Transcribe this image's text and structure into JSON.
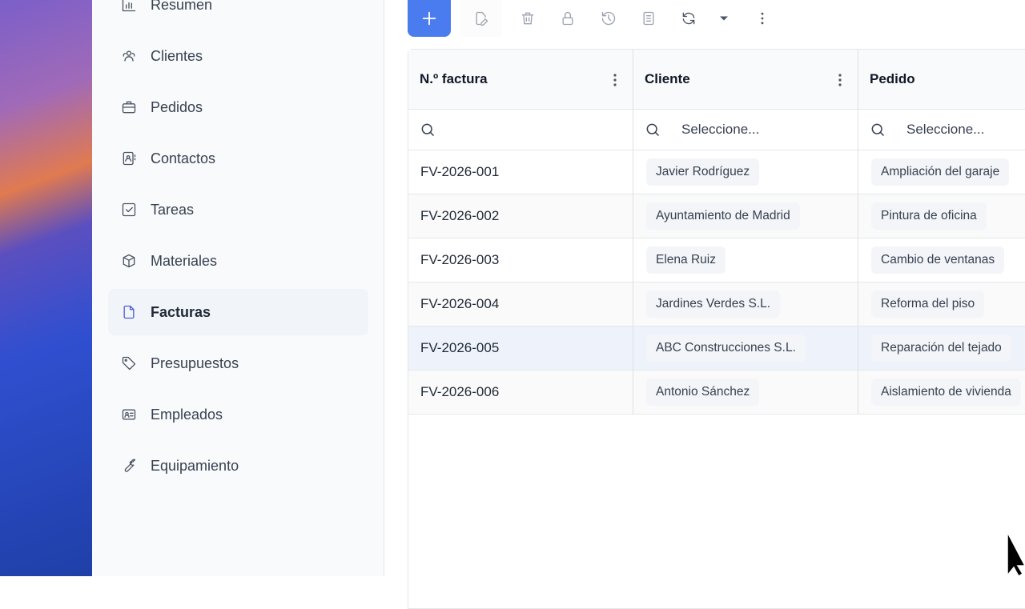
{
  "sidebar": {
    "items": [
      {
        "label": "Resumen",
        "icon": "bar-chart-icon"
      },
      {
        "label": "Clientes",
        "icon": "users-icon"
      },
      {
        "label": "Pedidos",
        "icon": "briefcase-icon"
      },
      {
        "label": "Contactos",
        "icon": "contact-book-icon"
      },
      {
        "label": "Tareas",
        "icon": "checkbox-icon"
      },
      {
        "label": "Materiales",
        "icon": "box-icon"
      },
      {
        "label": "Facturas",
        "icon": "file-icon",
        "active": true
      },
      {
        "label": "Presupuestos",
        "icon": "tag-icon"
      },
      {
        "label": "Empleados",
        "icon": "id-card-icon"
      },
      {
        "label": "Equipamiento",
        "icon": "wrench-icon"
      }
    ]
  },
  "toolbar": {
    "icons": [
      "plus-icon",
      "edit-file-icon",
      "trash-icon",
      "lock-icon",
      "history-icon",
      "document-icon",
      "refresh-icon",
      "caret-down-icon",
      "more-vertical-icon"
    ],
    "accent": "#4a7cf0"
  },
  "table": {
    "columns": [
      {
        "label": "N.º factura",
        "filter_placeholder": ""
      },
      {
        "label": "Cliente",
        "filter_placeholder": "Seleccione..."
      },
      {
        "label": "Pedido",
        "filter_placeholder": "Seleccione..."
      }
    ],
    "rows": [
      [
        "FV-2026-001",
        "Javier Rodríguez",
        "Ampliación del garaje"
      ],
      [
        "FV-2026-002",
        "Ayuntamiento de Madrid",
        "Pintura de oficina"
      ],
      [
        "FV-2026-003",
        "Elena Ruiz",
        "Cambio de ventanas"
      ],
      [
        "FV-2026-004",
        "Jardines Verdes S.L.",
        "Reforma del piso"
      ],
      [
        "FV-2026-005",
        "ABC Construcciones S.L.",
        "Reparación del tejado"
      ],
      [
        "FV-2026-006",
        "Antonio Sánchez",
        "Aislamiento de vivienda"
      ]
    ],
    "selected_row": 4
  }
}
